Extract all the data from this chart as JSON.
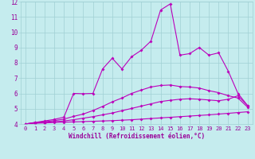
{
  "xlabel": "Windchill (Refroidissement éolien,°C)",
  "x": [
    0,
    1,
    2,
    3,
    4,
    5,
    6,
    7,
    8,
    9,
    10,
    11,
    12,
    13,
    14,
    15,
    16,
    17,
    18,
    19,
    20,
    21,
    22,
    23
  ],
  "line1": [
    4.0,
    4.05,
    4.07,
    4.1,
    4.12,
    4.14,
    4.16,
    4.18,
    4.2,
    4.22,
    4.25,
    4.28,
    4.32,
    4.36,
    4.4,
    4.44,
    4.48,
    4.52,
    4.56,
    4.6,
    4.65,
    4.7,
    4.75,
    4.8
  ],
  "line2": [
    4.0,
    4.07,
    4.1,
    4.15,
    4.2,
    4.28,
    4.38,
    4.48,
    4.6,
    4.72,
    4.87,
    5.02,
    5.17,
    5.32,
    5.47,
    5.55,
    5.62,
    5.65,
    5.62,
    5.57,
    5.52,
    5.62,
    5.85,
    5.2
  ],
  "line3": [
    4.0,
    4.1,
    4.15,
    4.22,
    4.32,
    4.5,
    4.65,
    4.88,
    5.15,
    5.45,
    5.7,
    6.0,
    6.22,
    6.42,
    6.52,
    6.55,
    6.45,
    6.42,
    6.35,
    6.18,
    6.05,
    5.85,
    5.7,
    5.1
  ],
  "line4": [
    4.0,
    4.1,
    4.2,
    4.3,
    4.45,
    6.0,
    5.98,
    6.0,
    7.6,
    8.3,
    7.6,
    8.4,
    8.82,
    9.42,
    11.45,
    11.85,
    8.5,
    8.6,
    9.0,
    8.5,
    8.65,
    7.45,
    6.0,
    5.2
  ],
  "line_color": "#bb00bb",
  "bg_color": "#c5ecee",
  "grid_color": "#a0d0d4",
  "tick_color": "#990099",
  "label_color": "#990099",
  "ylim_min": 4,
  "ylim_max": 12,
  "yticks": [
    4,
    5,
    6,
    7,
    8,
    9,
    10,
    11,
    12
  ],
  "xticks": [
    0,
    1,
    2,
    3,
    4,
    5,
    6,
    7,
    8,
    9,
    10,
    11,
    12,
    13,
    14,
    15,
    16,
    17,
    18,
    19,
    20,
    21,
    22,
    23
  ],
  "tick_fontsize": 5.0,
  "xlabel_fontsize": 5.5,
  "marker_size": 2.0,
  "line_width": 0.8
}
